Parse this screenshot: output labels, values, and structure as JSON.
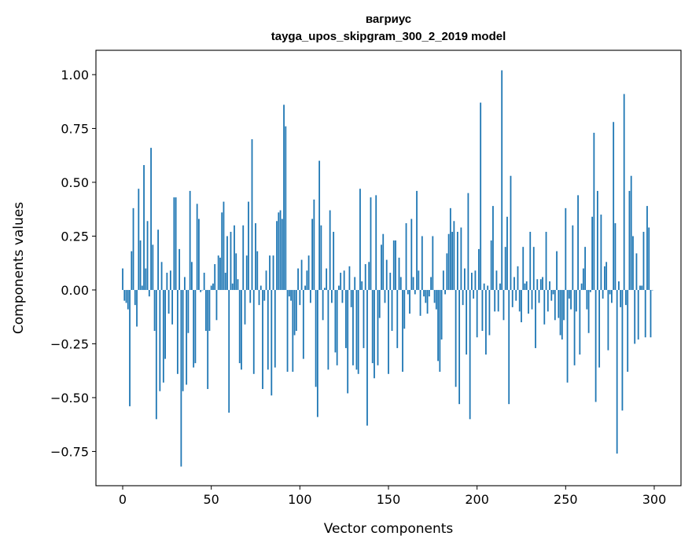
{
  "chart_data": {
    "type": "bar",
    "title_lines": [
      "вагриус",
      "tayga_upos_skipgram_300_2_2019 model"
    ],
    "xlabel": "Vector components",
    "ylabel": "Components values",
    "xlim": [
      -15.1,
      315.1
    ],
    "ylim": [
      -0.909,
      1.113
    ],
    "xticks": [
      0,
      50,
      100,
      150,
      200,
      250,
      300
    ],
    "xtick_labels": [
      "0",
      "50",
      "100",
      "150",
      "200",
      "250",
      "300"
    ],
    "yticks": [
      -0.75,
      -0.5,
      -0.25,
      0,
      0.25,
      0.5,
      0.75,
      1.0
    ],
    "ytick_labels": [
      "−0.75",
      "−0.50",
      "−0.25",
      "0.00",
      "0.25",
      "0.50",
      "0.75",
      "1.00"
    ],
    "grid": false,
    "bar_color": "#1f77b4",
    "values": [
      0.1,
      -0.05,
      -0.06,
      -0.09,
      -0.54,
      0.18,
      0.38,
      -0.07,
      -0.17,
      0.47,
      0.23,
      0.02,
      0.58,
      0.1,
      0.32,
      -0.03,
      0.66,
      0.21,
      -0.19,
      -0.6,
      0.28,
      -0.47,
      0.13,
      -0.43,
      -0.32,
      0.08,
      -0.11,
      0.09,
      -0.16,
      0.43,
      0.43,
      -0.39,
      0.19,
      -0.82,
      -0.47,
      0.06,
      -0.44,
      -0.2,
      0.46,
      0.13,
      -0.36,
      -0.34,
      0.4,
      0.33,
      -0.01,
      0.0,
      0.08,
      -0.19,
      -0.46,
      -0.19,
      0.02,
      0.03,
      0.12,
      -0.14,
      0.16,
      0.15,
      0.36,
      0.41,
      0.08,
      0.25,
      -0.57,
      0.27,
      0.03,
      0.3,
      0.17,
      0.05,
      -0.34,
      -0.37,
      0.3,
      -0.16,
      0.16,
      0.41,
      -0.06,
      0.7,
      -0.39,
      0.31,
      0.18,
      -0.07,
      0.02,
      -0.46,
      -0.05,
      0.09,
      -0.37,
      0.16,
      -0.49,
      0.16,
      -0.36,
      0.32,
      0.36,
      0.37,
      0.33,
      0.86,
      0.76,
      -0.38,
      -0.03,
      -0.05,
      -0.38,
      -0.21,
      -0.19,
      0.1,
      -0.07,
      0.14,
      -0.32,
      0.02,
      0.09,
      0.16,
      -0.06,
      0.33,
      0.42,
      -0.45,
      -0.59,
      0.6,
      0.3,
      -0.14,
      0.01,
      0.1,
      -0.37,
      0.37,
      -0.06,
      0.27,
      -0.29,
      -0.35,
      0.02,
      0.08,
      -0.06,
      0.09,
      -0.27,
      -0.48,
      0.11,
      -0.08,
      -0.35,
      0.06,
      -0.37,
      -0.39,
      0.47,
      0.04,
      -0.27,
      0.12,
      -0.63,
      0.13,
      0.43,
      -0.34,
      -0.41,
      0.44,
      -0.35,
      -0.13,
      0.21,
      0.26,
      -0.06,
      0.14,
      -0.39,
      0.08,
      -0.19,
      0.23,
      0.23,
      -0.27,
      0.15,
      0.06,
      -0.38,
      -0.18,
      0.31,
      -0.02,
      -0.11,
      0.33,
      0.06,
      -0.02,
      0.46,
      0.09,
      -0.12,
      0.25,
      -0.03,
      -0.06,
      -0.11,
      -0.03,
      0.06,
      0.25,
      -0.06,
      -0.09,
      -0.33,
      -0.38,
      -0.23,
      0.09,
      -0.02,
      0.17,
      0.26,
      0.38,
      0.27,
      0.32,
      -0.45,
      0.27,
      -0.53,
      0.29,
      -0.07,
      0.1,
      -0.3,
      0.45,
      -0.6,
      0.08,
      -0.04,
      0.09,
      -0.22,
      0.19,
      0.87,
      -0.19,
      0.03,
      -0.3,
      0.02,
      -0.21,
      0.23,
      0.39,
      -0.1,
      0.09,
      -0.1,
      0.03,
      1.02,
      -0.14,
      0.2,
      0.34,
      -0.53,
      0.53,
      -0.08,
      0.06,
      -0.05,
      0.11,
      -0.1,
      -0.15,
      0.2,
      0.03,
      0.04,
      -0.11,
      0.27,
      -0.09,
      0.2,
      -0.27,
      0.05,
      -0.06,
      0.05,
      0.06,
      -0.16,
      0.27,
      -0.1,
      0.04,
      -0.05,
      -0.02,
      -0.14,
      0.18,
      -0.13,
      -0.21,
      -0.23,
      -0.14,
      0.38,
      -0.43,
      -0.04,
      -0.09,
      0.3,
      -0.35,
      -0.1,
      0.44,
      -0.3,
      0.03,
      0.1,
      0.2,
      -0.09,
      -0.2,
      -0.01,
      0.34,
      0.73,
      -0.52,
      0.46,
      -0.36,
      0.35,
      -0.04,
      0.11,
      0.13,
      -0.28,
      -0.02,
      -0.06,
      0.78,
      0.31,
      -0.76,
      0.04,
      -0.08,
      -0.56,
      0.91,
      -0.07,
      -0.38,
      0.46,
      0.53,
      0.25,
      -0.25,
      0.17,
      -0.23,
      0.02,
      0.02,
      0.27,
      -0.22,
      0.39,
      0.29,
      -0.22,
      0.0
    ]
  }
}
